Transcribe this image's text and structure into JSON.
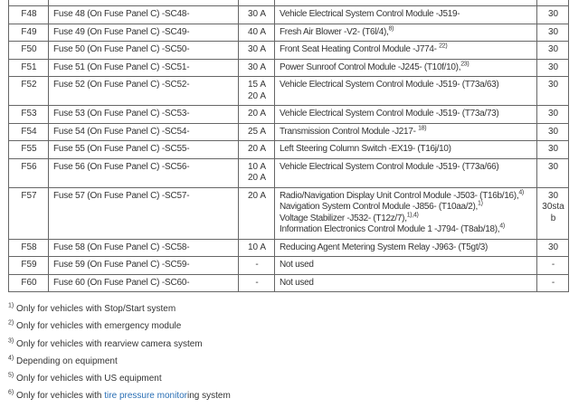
{
  "table": {
    "rows": [
      {
        "id": "",
        "name": "",
        "amps": [
          ""
        ],
        "desc": [
          {
            "text": "",
            "sup": ""
          }
        ],
        "terminal": [
          ""
        ]
      },
      {
        "id": "F48",
        "name": "Fuse 48 (On Fuse Panel C) -SC48-",
        "amps": [
          "30 A"
        ],
        "desc": [
          {
            "text": "Vehicle Electrical System Control Module -J519-",
            "sup": ""
          }
        ],
        "terminal": [
          "30"
        ]
      },
      {
        "id": "F49",
        "name": "Fuse 49 (On Fuse Panel C) -SC49-",
        "amps": [
          "40 A"
        ],
        "desc": [
          {
            "text": "Fresh Air Blower -V2- (T6l/4),",
            "sup": "8)"
          }
        ],
        "terminal": [
          "30"
        ]
      },
      {
        "id": "F50",
        "name": "Fuse 50 (On Fuse Panel C) -SC50-",
        "amps": [
          "30 A"
        ],
        "desc": [
          {
            "text": "Front Seat Heating Control Module -J774- ",
            "sup": "22)"
          }
        ],
        "terminal": [
          "30"
        ]
      },
      {
        "id": "F51",
        "name": "Fuse 51 (On Fuse Panel C) -SC51-",
        "amps": [
          "30 A"
        ],
        "desc": [
          {
            "text": "Power Sunroof Control Module -J245- (T10f/10),",
            "sup": "23)"
          }
        ],
        "terminal": [
          "30"
        ]
      },
      {
        "id": "F52",
        "name": "Fuse 52 (On Fuse Panel C) -SC52-",
        "amps": [
          "15 A",
          "20 A"
        ],
        "desc": [
          {
            "text": "Vehicle Electrical System Control Module -J519- (T73a/63)",
            "sup": ""
          }
        ],
        "terminal": [
          "30"
        ]
      },
      {
        "id": "F53",
        "name": "Fuse 53 (On Fuse Panel C) -SC53-",
        "amps": [
          "20 A"
        ],
        "desc": [
          {
            "text": "Vehicle Electrical System Control Module -J519- (T73a/73)",
            "sup": ""
          }
        ],
        "terminal": [
          "30"
        ]
      },
      {
        "id": "F54",
        "name": "Fuse 54 (On Fuse Panel C) -SC54-",
        "amps": [
          "25 A"
        ],
        "desc": [
          {
            "text": "Transmission Control Module -J217- ",
            "sup": "18)"
          }
        ],
        "terminal": [
          "30"
        ]
      },
      {
        "id": "F55",
        "name": "Fuse 55 (On Fuse Panel C) -SC55-",
        "amps": [
          "20 A"
        ],
        "desc": [
          {
            "text": "Left Steering Column Switch -EX19- (T16j/10)",
            "sup": ""
          }
        ],
        "terminal": [
          "30"
        ]
      },
      {
        "id": "F56",
        "name": "Fuse 56 (On Fuse Panel C) -SC56-",
        "amps": [
          "10 A",
          "20 A"
        ],
        "desc": [
          {
            "text": "Vehicle Electrical System Control Module -J519- (T73a/66)",
            "sup": ""
          }
        ],
        "terminal": [
          "30"
        ]
      },
      {
        "id": "F57",
        "name": "Fuse 57 (On Fuse Panel C) -SC57-",
        "amps": [
          "20 A"
        ],
        "desc": [
          {
            "text": "Radio/Navigation Display Unit Control Module -J503- (T16b/16),",
            "sup": "4)"
          },
          {
            "text": "Navigation System Control Module -J856- (T10aa/2),",
            "sup": "1)"
          },
          {
            "text": "Voltage Stabilizer -J532- (T12z/7),",
            "sup": "1),4)"
          },
          {
            "text": "Information Electronics Control Module 1 -J794- (T8ab/18),",
            "sup": "4)"
          }
        ],
        "terminal": [
          "30",
          "30stab"
        ]
      },
      {
        "id": "F58",
        "name": "Fuse 58 (On Fuse Panel C) -SC58-",
        "amps": [
          "10 A"
        ],
        "desc": [
          {
            "text": "Reducing Agent Metering System Relay -J963- (T5gt/3)",
            "sup": ""
          }
        ],
        "terminal": [
          "30"
        ]
      },
      {
        "id": "F59",
        "name": "Fuse 59 (On Fuse Panel C) -SC59-",
        "amps": [
          "-"
        ],
        "desc": [
          {
            "text": "Not used",
            "sup": ""
          }
        ],
        "terminal": [
          "-"
        ]
      },
      {
        "id": "F60",
        "name": "Fuse 60 (On Fuse Panel C) -SC60-",
        "amps": [
          "-"
        ],
        "desc": [
          {
            "text": "Not used",
            "sup": ""
          }
        ],
        "terminal": [
          "-"
        ]
      }
    ]
  },
  "footnotes": [
    {
      "mark": "1)",
      "pre": "Only for vehicles with Stop/Start system",
      "link": "",
      "post": ""
    },
    {
      "mark": "2)",
      "pre": "Only for vehicles with emergency module",
      "link": "",
      "post": ""
    },
    {
      "mark": "3)",
      "pre": "Only for vehicles with rearview camera system",
      "link": "",
      "post": ""
    },
    {
      "mark": "4)",
      "pre": "Depending on equipment",
      "link": "",
      "post": ""
    },
    {
      "mark": "5)",
      "pre": "Only for vehicles with US equipment",
      "link": "",
      "post": ""
    },
    {
      "mark": "6)",
      "pre": "Only for vehicles with ",
      "link": "tire pressure monitor",
      "post": "ing system"
    }
  ],
  "colors": {
    "link": "#2a6fb5",
    "border": "#666666",
    "text": "#333333"
  }
}
